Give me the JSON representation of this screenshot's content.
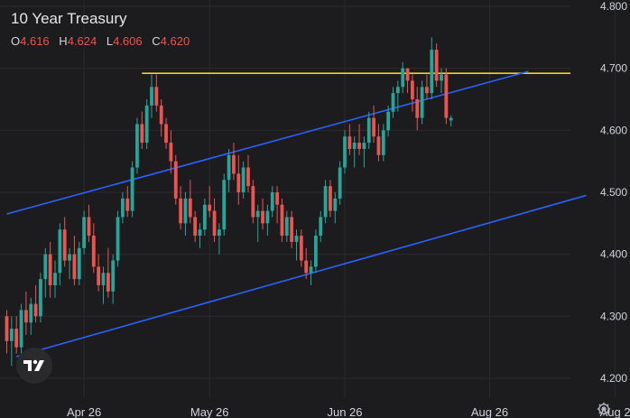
{
  "title": "10 Year Treasury",
  "ohlc": {
    "o_label": "O",
    "o": "4.616",
    "h_label": "H",
    "h": "4.624",
    "l_label": "L",
    "l": "4.606",
    "c_label": "C",
    "c": "4.620"
  },
  "colors": {
    "background": "#1c1c1e",
    "up": "#26a69a",
    "down": "#ef5350",
    "trend": "#2962ff",
    "resistance": "#f2d024",
    "axis_text": "#d1d4dc",
    "grid": "#2a2a2d"
  },
  "icons": {
    "logo": "tradingview-logo-icon",
    "settings": "gear-icon"
  },
  "chart_data": {
    "type": "candlestick",
    "title": "10 Year Treasury",
    "y_ticks": [
      "4.800",
      "4.700",
      "4.600",
      "4.500",
      "4.400",
      "4.300",
      "4.200"
    ],
    "x_ticks": [
      {
        "label": "Apr 26",
        "index": 16
      },
      {
        "label": "May 26",
        "index": 42
      },
      {
        "label": "Jun 26",
        "index": 70
      },
      {
        "label": "Aug 26",
        "index": 100
      },
      {
        "label": "Aug 2",
        "index": 126
      }
    ],
    "ylim": [
      4.185,
      4.812
    ],
    "grid": true,
    "candles": [
      [
        4.3,
        4.31,
        4.24,
        4.26
      ],
      [
        4.26,
        4.3,
        4.22,
        4.28
      ],
      [
        4.28,
        4.3,
        4.24,
        4.25
      ],
      [
        4.25,
        4.32,
        4.23,
        4.31
      ],
      [
        4.31,
        4.34,
        4.27,
        4.29
      ],
      [
        4.29,
        4.33,
        4.27,
        4.32
      ],
      [
        4.32,
        4.35,
        4.29,
        4.3
      ],
      [
        4.3,
        4.37,
        4.29,
        4.36
      ],
      [
        4.36,
        4.41,
        4.33,
        4.4
      ],
      [
        4.4,
        4.42,
        4.33,
        4.35
      ],
      [
        4.35,
        4.39,
        4.33,
        4.37
      ],
      [
        4.37,
        4.45,
        4.35,
        4.44
      ],
      [
        4.44,
        4.46,
        4.38,
        4.39
      ],
      [
        4.39,
        4.41,
        4.36,
        4.4
      ],
      [
        4.4,
        4.43,
        4.35,
        4.36
      ],
      [
        4.36,
        4.42,
        4.35,
        4.41
      ],
      [
        4.41,
        4.47,
        4.4,
        4.46
      ],
      [
        4.46,
        4.48,
        4.42,
        4.43
      ],
      [
        4.43,
        4.45,
        4.37,
        4.38
      ],
      [
        4.38,
        4.4,
        4.34,
        4.35
      ],
      [
        4.35,
        4.38,
        4.32,
        4.37
      ],
      [
        4.37,
        4.41,
        4.33,
        4.34
      ],
      [
        4.34,
        4.4,
        4.32,
        4.39
      ],
      [
        4.39,
        4.47,
        4.38,
        4.46
      ],
      [
        4.46,
        4.5,
        4.45,
        4.49
      ],
      [
        4.49,
        4.51,
        4.46,
        4.47
      ],
      [
        4.47,
        4.55,
        4.46,
        4.54
      ],
      [
        4.54,
        4.62,
        4.53,
        4.61
      ],
      [
        4.61,
        4.63,
        4.57,
        4.58
      ],
      [
        4.58,
        4.65,
        4.57,
        4.64
      ],
      [
        4.64,
        4.69,
        4.62,
        4.67
      ],
      [
        4.67,
        4.69,
        4.63,
        4.64
      ],
      [
        4.64,
        4.65,
        4.59,
        4.61
      ],
      [
        4.61,
        4.62,
        4.57,
        4.58
      ],
      [
        4.58,
        4.6,
        4.53,
        4.55
      ],
      [
        4.55,
        4.56,
        4.48,
        4.49
      ],
      [
        4.49,
        4.51,
        4.44,
        4.45
      ],
      [
        4.45,
        4.5,
        4.43,
        4.49
      ],
      [
        4.49,
        4.52,
        4.45,
        4.46
      ],
      [
        4.46,
        4.47,
        4.42,
        4.43
      ],
      [
        4.43,
        4.45,
        4.41,
        4.44
      ],
      [
        4.44,
        4.49,
        4.43,
        4.48
      ],
      [
        4.48,
        4.51,
        4.46,
        4.47
      ],
      [
        4.47,
        4.49,
        4.42,
        4.43
      ],
      [
        4.43,
        4.45,
        4.4,
        4.44
      ],
      [
        4.44,
        4.53,
        4.43,
        4.52
      ],
      [
        4.52,
        4.57,
        4.5,
        4.56
      ],
      [
        4.56,
        4.58,
        4.52,
        4.53
      ],
      [
        4.53,
        4.56,
        4.48,
        4.5
      ],
      [
        4.5,
        4.55,
        4.49,
        4.54
      ],
      [
        4.54,
        4.56,
        4.5,
        4.51
      ],
      [
        4.51,
        4.52,
        4.45,
        4.46
      ],
      [
        4.46,
        4.48,
        4.42,
        4.47
      ],
      [
        4.47,
        4.49,
        4.44,
        4.45
      ],
      [
        4.45,
        4.48,
        4.43,
        4.47
      ],
      [
        4.47,
        4.51,
        4.46,
        4.5
      ],
      [
        4.5,
        4.51,
        4.45,
        4.48
      ],
      [
        4.48,
        4.49,
        4.42,
        4.43
      ],
      [
        4.43,
        4.47,
        4.42,
        4.46
      ],
      [
        4.46,
        4.47,
        4.41,
        4.42
      ],
      [
        4.42,
        4.44,
        4.39,
        4.43
      ],
      [
        4.43,
        4.44,
        4.38,
        4.39
      ],
      [
        4.39,
        4.41,
        4.36,
        4.37
      ],
      [
        4.37,
        4.39,
        4.35,
        4.38
      ],
      [
        4.38,
        4.44,
        4.37,
        4.43
      ],
      [
        4.43,
        4.47,
        4.42,
        4.46
      ],
      [
        4.46,
        4.52,
        4.45,
        4.51
      ],
      [
        4.51,
        4.52,
        4.46,
        4.47
      ],
      [
        4.47,
        4.5,
        4.45,
        4.49
      ],
      [
        4.49,
        4.55,
        4.48,
        4.54
      ],
      [
        4.54,
        4.6,
        4.53,
        4.59
      ],
      [
        4.59,
        4.61,
        4.56,
        4.57
      ],
      [
        4.57,
        4.59,
        4.54,
        4.58
      ],
      [
        4.58,
        4.61,
        4.56,
        4.57
      ],
      [
        4.57,
        4.59,
        4.54,
        4.58
      ],
      [
        4.58,
        4.63,
        4.57,
        4.62
      ],
      [
        4.62,
        4.64,
        4.58,
        4.59
      ],
      [
        4.59,
        4.61,
        4.55,
        4.56
      ],
      [
        4.56,
        4.61,
        4.55,
        4.6
      ],
      [
        4.6,
        4.64,
        4.59,
        4.63
      ],
      [
        4.63,
        4.67,
        4.62,
        4.66
      ],
      [
        4.66,
        4.68,
        4.63,
        4.67
      ],
      [
        4.67,
        4.71,
        4.66,
        4.7
      ],
      [
        4.7,
        4.7,
        4.66,
        4.68
      ],
      [
        4.68,
        4.69,
        4.63,
        4.65
      ],
      [
        4.65,
        4.67,
        4.6,
        4.62
      ],
      [
        4.62,
        4.68,
        4.61,
        4.67
      ],
      [
        4.67,
        4.69,
        4.65,
        4.66
      ],
      [
        4.66,
        4.75,
        4.65,
        4.73
      ],
      [
        4.73,
        4.74,
        4.67,
        4.68
      ],
      [
        4.68,
        4.7,
        4.66,
        4.69
      ],
      [
        4.69,
        4.7,
        4.61,
        4.62
      ],
      [
        4.616,
        4.624,
        4.606,
        4.62
      ]
    ],
    "overlays": {
      "resistance": 4.692,
      "upper_channel": [
        [
          0,
          4.465
        ],
        [
          108,
          4.695
        ]
      ],
      "lower_channel": [
        [
          2,
          4.235
        ],
        [
          120,
          4.495
        ]
      ]
    }
  }
}
